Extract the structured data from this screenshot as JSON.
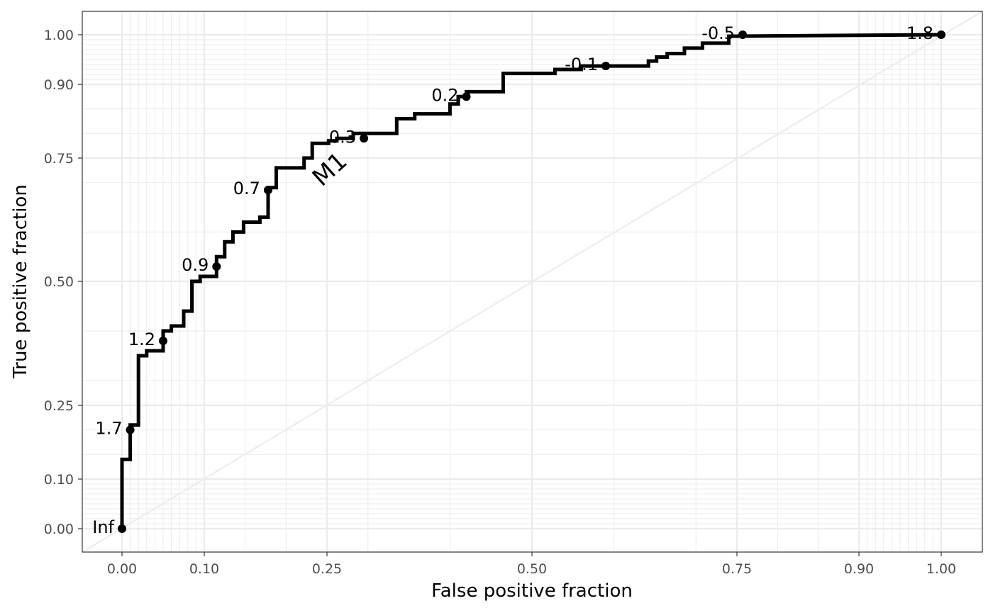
{
  "chart_data": {
    "type": "line",
    "subtype": "roc-curve",
    "title": "",
    "xlabel": "False positive fraction",
    "ylabel": "True positive fraction",
    "xlim": [
      -0.049,
      1.049
    ],
    "ylim": [
      -0.05,
      1.05
    ],
    "scale": "probit-style tick spacing",
    "x_ticks": [
      "0.00",
      "0.10",
      "0.25",
      "0.50",
      "0.75",
      "0.90",
      "1.00"
    ],
    "y_ticks": [
      "0.00",
      "0.10",
      "0.25",
      "0.50",
      "0.75",
      "0.90",
      "1.00"
    ],
    "x_tick_values": [
      0,
      0.1,
      0.25,
      0.5,
      0.75,
      0.9,
      1.0
    ],
    "y_tick_values": [
      0,
      0.1,
      0.25,
      0.5,
      0.75,
      0.9,
      1.0
    ],
    "grid": true,
    "legend": "none",
    "reference_line": "diagonal",
    "curve_label": "M1",
    "curve_color": "#000000",
    "grid_color": "#ebebeb",
    "series": [
      {
        "fpf": [
          0,
          0,
          0.01,
          0.01,
          0.02,
          0.02,
          0.03,
          0.03,
          0.05,
          0.05,
          0.06,
          0.06,
          0.075,
          0.075,
          0.085,
          0.085,
          0.095,
          0.095,
          0.115,
          0.115,
          0.125,
          0.125,
          0.135,
          0.135,
          0.148,
          0.148,
          0.168,
          0.168,
          0.178,
          0.178,
          0.188,
          0.188,
          0.222,
          0.222,
          0.232,
          0.232,
          0.252,
          0.252,
          0.262,
          0.262,
          0.282,
          0.282,
          0.335,
          0.335,
          0.357,
          0.357,
          0.4,
          0.4,
          0.41,
          0.41,
          0.42,
          0.42,
          0.465,
          0.465,
          0.528,
          0.528,
          0.56,
          0.56,
          0.642,
          0.642,
          0.652,
          0.652,
          0.665,
          0.665,
          0.686,
          0.686,
          0.708,
          0.708,
          0.74,
          0.74,
          1.0
        ],
        "tpf": [
          0,
          0.14,
          0.14,
          0.21,
          0.21,
          0.35,
          0.35,
          0.36,
          0.36,
          0.4,
          0.4,
          0.41,
          0.41,
          0.44,
          0.44,
          0.5,
          0.5,
          0.51,
          0.51,
          0.55,
          0.55,
          0.58,
          0.58,
          0.6,
          0.6,
          0.62,
          0.62,
          0.63,
          0.63,
          0.69,
          0.69,
          0.73,
          0.73,
          0.75,
          0.75,
          0.78,
          0.78,
          0.785,
          0.785,
          0.79,
          0.79,
          0.8,
          0.8,
          0.83,
          0.83,
          0.84,
          0.84,
          0.86,
          0.86,
          0.875,
          0.875,
          0.885,
          0.885,
          0.922,
          0.922,
          0.93,
          0.93,
          0.937,
          0.937,
          0.947,
          0.947,
          0.955,
          0.955,
          0.962,
          0.962,
          0.973,
          0.973,
          0.983,
          0.983,
          0.997,
          1.0
        ]
      }
    ],
    "cutoff_points": [
      {
        "label": "Inf",
        "fpf": 0.0,
        "tpf": 0.0
      },
      {
        "label": "1.7",
        "fpf": 0.01,
        "tpf": 0.2
      },
      {
        "label": "1.2",
        "fpf": 0.05,
        "tpf": 0.38
      },
      {
        "label": "0.9",
        "fpf": 0.115,
        "tpf": 0.53
      },
      {
        "label": "0.7",
        "fpf": 0.178,
        "tpf": 0.685
      },
      {
        "label": "0.3",
        "fpf": 0.295,
        "tpf": 0.79
      },
      {
        "label": "0.2",
        "fpf": 0.42,
        "tpf": 0.875
      },
      {
        "label": "-0.1",
        "fpf": 0.59,
        "tpf": 0.937
      },
      {
        "label": "-0.5",
        "fpf": 0.757,
        "tpf": 1.0
      },
      {
        "label": "-1.8",
        "fpf": 1.0,
        "tpf": 1.0
      }
    ]
  }
}
